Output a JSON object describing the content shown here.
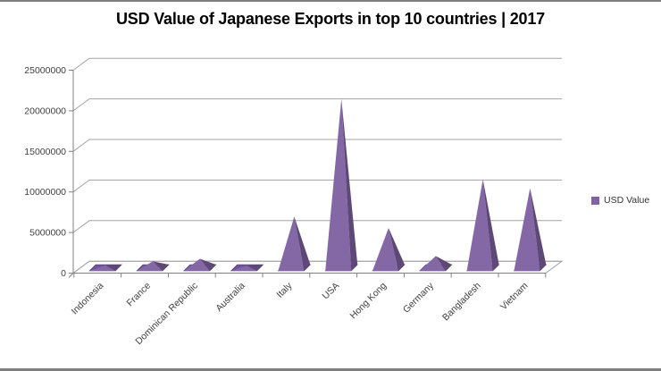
{
  "title": "USD Value of Japanese Exports in top 10 countries | 2017",
  "legend": {
    "label": "USD Value",
    "marker_color": "#8064A2"
  },
  "chart_data": {
    "type": "bar",
    "subtype": "3d-pyramid",
    "title": "USD Value of Japanese Exports in top 10 countries | 2017",
    "xlabel": "",
    "ylabel": "",
    "categories": [
      "Indonesia",
      "France",
      "Dominican Republic",
      "Australia",
      "Italy",
      "USA",
      "Hong Kong",
      "Germany",
      "Bangladesh",
      "Vietnam"
    ],
    "series": [
      {
        "name": "USD Value",
        "values": [
          300000,
          800000,
          1100000,
          250000,
          6300000,
          20800000,
          4900000,
          1450000,
          10900000,
          9800000
        ]
      }
    ],
    "y_ticks": [
      0,
      5000000,
      10000000,
      15000000,
      20000000,
      25000000
    ],
    "ylim": [
      0,
      25000000
    ],
    "grid": true,
    "legend_position": "right",
    "colors": {
      "pyramid_light": "#8468A6",
      "pyramid_dark": "#5E4878",
      "pyramid_base": "#6F549B",
      "pyramid_edge": "#4A3568",
      "gridline": "#A3A3A3",
      "axis": "#808080",
      "text": "#3F3F3F",
      "title": "#000000"
    }
  }
}
